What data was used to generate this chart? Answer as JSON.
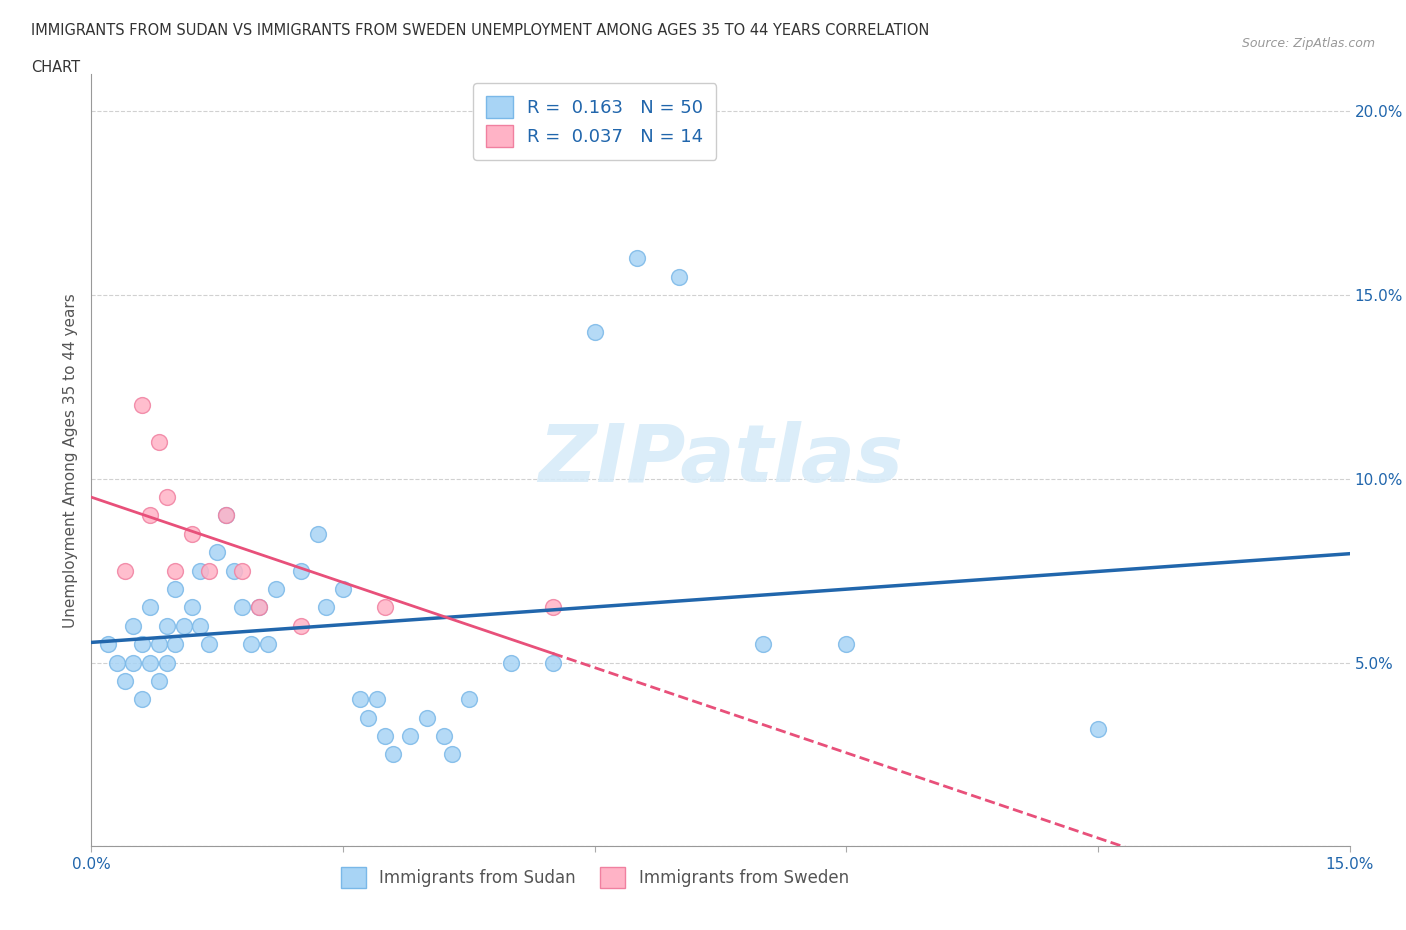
{
  "title_line1": "IMMIGRANTS FROM SUDAN VS IMMIGRANTS FROM SWEDEN UNEMPLOYMENT AMONG AGES 35 TO 44 YEARS CORRELATION",
  "title_line2": "CHART",
  "source_text": "Source: ZipAtlas.com",
  "ylabel": "Unemployment Among Ages 35 to 44 years",
  "xlim": [
    0.0,
    0.15
  ],
  "ylim": [
    0.0,
    0.21
  ],
  "yticks": [
    0.0,
    0.05,
    0.1,
    0.15,
    0.2
  ],
  "ytick_labels": [
    "",
    "5.0%",
    "10.0%",
    "15.0%",
    "20.0%"
  ],
  "xticks": [
    0.0,
    0.03,
    0.06,
    0.09,
    0.12,
    0.15
  ],
  "xtick_labels": [
    "0.0%",
    "",
    "",
    "",
    "",
    "15.0%"
  ],
  "sudan_scatter_color": "#a8d4f5",
  "sudan_edge_color": "#7ab8e8",
  "sweden_scatter_color": "#ffb3c6",
  "sweden_edge_color": "#f080a0",
  "sudan_line_color": "#2166ac",
  "sweden_line_color": "#e8507a",
  "R_sudan": 0.163,
  "N_sudan": 50,
  "R_sweden": 0.037,
  "N_sweden": 14,
  "watermark_text": "ZIPatlas",
  "sudan_x": [
    0.002,
    0.003,
    0.004,
    0.005,
    0.005,
    0.006,
    0.006,
    0.007,
    0.007,
    0.008,
    0.008,
    0.009,
    0.009,
    0.01,
    0.01,
    0.011,
    0.012,
    0.013,
    0.013,
    0.014,
    0.015,
    0.016,
    0.017,
    0.018,
    0.019,
    0.02,
    0.021,
    0.022,
    0.025,
    0.027,
    0.028,
    0.03,
    0.032,
    0.033,
    0.034,
    0.035,
    0.036,
    0.038,
    0.04,
    0.042,
    0.043,
    0.045,
    0.05,
    0.055,
    0.06,
    0.065,
    0.07,
    0.08,
    0.09,
    0.12
  ],
  "sudan_y": [
    0.055,
    0.05,
    0.045,
    0.06,
    0.05,
    0.055,
    0.04,
    0.065,
    0.05,
    0.055,
    0.045,
    0.06,
    0.05,
    0.07,
    0.055,
    0.06,
    0.065,
    0.075,
    0.06,
    0.055,
    0.08,
    0.09,
    0.075,
    0.065,
    0.055,
    0.065,
    0.055,
    0.07,
    0.075,
    0.085,
    0.065,
    0.07,
    0.04,
    0.035,
    0.04,
    0.03,
    0.025,
    0.03,
    0.035,
    0.03,
    0.025,
    0.04,
    0.05,
    0.05,
    0.14,
    0.16,
    0.155,
    0.055,
    0.055,
    0.032
  ],
  "sweden_x": [
    0.004,
    0.006,
    0.007,
    0.008,
    0.009,
    0.01,
    0.012,
    0.014,
    0.016,
    0.018,
    0.02,
    0.025,
    0.035,
    0.055
  ],
  "sweden_y": [
    0.075,
    0.12,
    0.09,
    0.11,
    0.095,
    0.075,
    0.085,
    0.075,
    0.09,
    0.075,
    0.065,
    0.06,
    0.065,
    0.065
  ]
}
